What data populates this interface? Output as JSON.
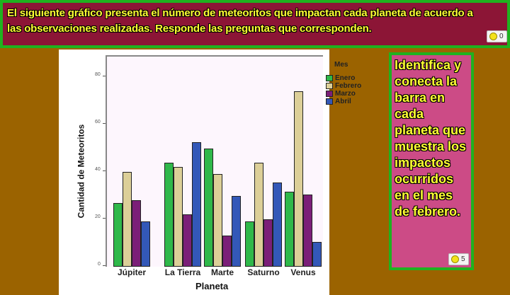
{
  "banner": {
    "text": "El siguiente gráfico presenta el número de meteoritos que impactan  cada planeta de acuerdo a las observaciones realizadas. Responde las preguntas que corresponden.",
    "badge_count": "0"
  },
  "side_panel": {
    "text": "Identifica y conecta la barra en cada planeta que muestra los impactos ocurridos en el mes de febrero.",
    "badge_count": "5"
  },
  "colors": {
    "Enero": "#2fb84a",
    "Febrero": "#dccf98",
    "Marzo": "#7b1f78",
    "Abril": "#3358b8"
  },
  "chart_data": {
    "type": "bar",
    "title": "",
    "xlabel": "Planeta",
    "ylabel": "Cantidad de Meteoritos",
    "categories": [
      "Júpiter",
      "La Tierra",
      "Marte",
      "Saturno",
      "Venus"
    ],
    "series": [
      {
        "name": "Enero",
        "values": [
          27,
          44,
          50,
          19,
          31.5
        ]
      },
      {
        "name": "Febrero",
        "values": [
          40,
          42,
          39,
          44,
          74
        ]
      },
      {
        "name": "Marzo",
        "values": [
          28,
          22,
          13,
          20,
          30.5
        ]
      },
      {
        "name": "Abril",
        "values": [
          19,
          52.5,
          30,
          35.5,
          10.5
        ]
      }
    ],
    "legend_title": "Mes",
    "legend_position": "right",
    "yticks": [
      0,
      20,
      40,
      60,
      80
    ],
    "ylim": [
      0,
      88
    ],
    "grid": false
  }
}
